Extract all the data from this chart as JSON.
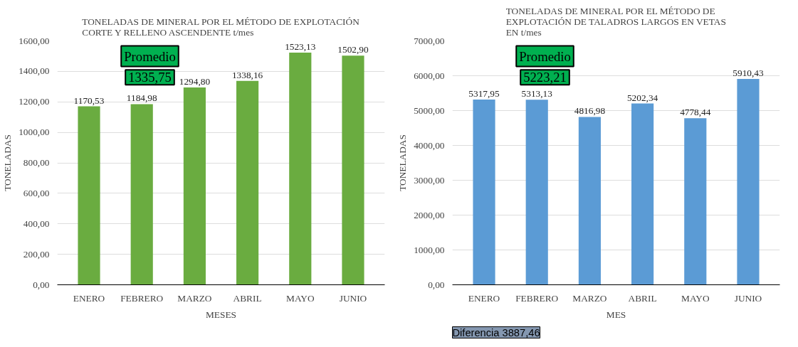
{
  "chart_data": [
    {
      "type": "bar",
      "title": "TONELADAS DE MINERAL POR EL MÉTODO DE EXPLOTACIÓN\nCORTE Y RELLENO ASCENDENTE t/mes",
      "xlabel": "MESES",
      "ylabel": "TONELADAS",
      "categories": [
        "ENERO",
        "FEBRERO",
        "MARZO",
        "ABRIL",
        "MAYO",
        "JUNIO"
      ],
      "values": [
        1170.53,
        1184.98,
        1294.8,
        1338.16,
        1523.13,
        1502.9
      ],
      "value_labels": [
        "1170,53",
        "1184,98",
        "1294,80",
        "1338,16",
        "1523,13",
        "1502,90"
      ],
      "color": "#6aac40",
      "ylim": [
        0,
        1600
      ],
      "yticks": [
        {
          "value": 0,
          "label": "0,00"
        },
        {
          "value": 200,
          "label": "200,00"
        },
        {
          "value": 400,
          "label": "400,00"
        },
        {
          "value": 600,
          "label": "600,00"
        },
        {
          "value": 800,
          "label": "800,00"
        },
        {
          "value": 1000,
          "label": "1000,00"
        },
        {
          "value": 1200,
          "label": "1200,00"
        },
        {
          "value": 1400,
          "label": "1400,00"
        },
        {
          "value": 1600,
          "label": "1600,00"
        }
      ],
      "grid": "y",
      "annotations": [
        "Promedio",
        "1335,75"
      ]
    },
    {
      "type": "bar",
      "title": "TONELADAS DE MINERAL POR EL MÉTODO DE\nEXPLOTACIÓN DE TALADROS LARGOS EN VETAS\nEN t/mes",
      "xlabel": "MES",
      "ylabel": "TONELADAS",
      "categories": [
        "ENERO",
        "FEBRERO",
        "MARZO",
        "ABRIL",
        "MAYO",
        "JUNIO"
      ],
      "values": [
        5317.95,
        5313.13,
        4816.98,
        5202.34,
        4778.44,
        5910.43
      ],
      "value_labels": [
        "5317,95",
        "5313,13",
        "4816,98",
        "5202,34",
        "4778,44",
        "5910,43"
      ],
      "color": "#5b9bd5",
      "ylim": [
        0,
        7000
      ],
      "yticks": [
        {
          "value": 0,
          "label": "0,00"
        },
        {
          "value": 1000,
          "label": "1000,00"
        },
        {
          "value": 2000,
          "label": "2000,00"
        },
        {
          "value": 3000,
          "label": "3000,00"
        },
        {
          "value": 4000,
          "label": "4000,00"
        },
        {
          "value": 5000,
          "label": "5000,00"
        },
        {
          "value": 6000,
          "label": "6000,00"
        },
        {
          "value": 7000,
          "label": "7000,00"
        }
      ],
      "grid": "y",
      "annotations": [
        "Promedio",
        "5223,21",
        "Diferencia 3887,46"
      ]
    }
  ]
}
